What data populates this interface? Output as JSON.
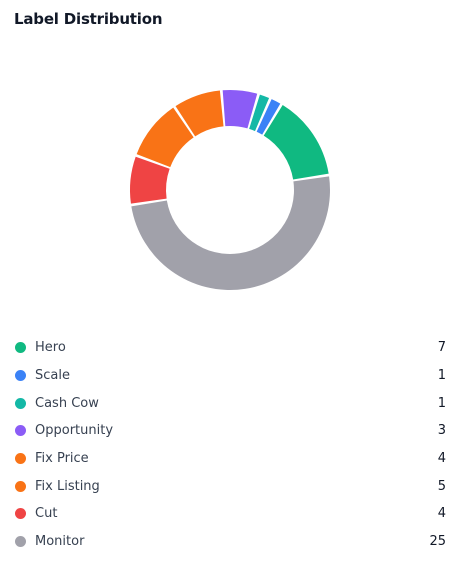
{
  "title": "Label Distribution",
  "chart_data": {
    "type": "pie",
    "variant": "donut",
    "title": "Label Distribution",
    "categories": [
      "Hero",
      "Scale",
      "Cash Cow",
      "Opportunity",
      "Fix Price",
      "Fix Listing",
      "Cut",
      "Monitor"
    ],
    "values": [
      7,
      1,
      1,
      3,
      4,
      5,
      4,
      25
    ],
    "colors": [
      "#10b981",
      "#3b82f6",
      "#14b8a6",
      "#8b5cf6",
      "#f97316",
      "#f97316",
      "#ef4444",
      "#a1a1aa"
    ],
    "legend_position": "bottom"
  }
}
